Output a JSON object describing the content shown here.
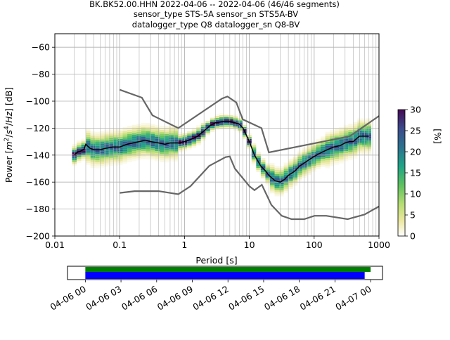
{
  "title": {
    "line1": "BK.BK52.00.HHN   2022-04-06 -- 2022-04-06  (46/46 segments)",
    "line2": "sensor_type STS-5A sensor_sn STS5A-BV",
    "line3": "datalogger_type Q8 datalogger_sn Q8-BV"
  },
  "colors": {
    "median": "#000000",
    "noise_models": "#666666",
    "grid": "#b0b0b0",
    "coverage_data": "#008000",
    "coverage_gaps": "#0000ff"
  },
  "chart_data": [
    {
      "type": "heatmap",
      "xlabel": "Period [s]",
      "ylabel": "Power [m²/s⁴/Hz] [dB]",
      "ylabel_parts": [
        "Power [",
        "m",
        "2",
        "/",
        "s",
        "4",
        "/",
        "Hz",
        "] [dB]"
      ],
      "x_scale": "log",
      "xlim": [
        0.01,
        1000
      ],
      "ylim": [
        -200,
        -50
      ],
      "grid": true,
      "x_ticks": [
        {
          "value": 0.01,
          "label": "0.01"
        },
        {
          "value": 0.1,
          "label": "0.1"
        },
        {
          "value": 1,
          "label": "1"
        },
        {
          "value": 10,
          "label": "10"
        },
        {
          "value": 100,
          "label": "100"
        },
        {
          "value": 1000,
          "label": "1000"
        }
      ],
      "y_ticks": [
        {
          "value": -60,
          "label": "−60"
        },
        {
          "value": -80,
          "label": "−80"
        },
        {
          "value": -100,
          "label": "−100"
        },
        {
          "value": -120,
          "label": "−120"
        },
        {
          "value": -140,
          "label": "−140"
        },
        {
          "value": -160,
          "label": "−160"
        },
        {
          "value": -180,
          "label": "−180"
        },
        {
          "value": -200,
          "label": "−200"
        }
      ],
      "median": {
        "x": [
          0.02,
          0.022,
          0.025,
          0.028,
          0.03,
          0.035,
          0.04,
          0.05,
          0.06,
          0.08,
          0.1,
          0.13,
          0.16,
          0.2,
          0.25,
          0.3,
          0.4,
          0.5,
          0.6,
          0.8,
          1.0,
          1.3,
          1.6,
          2.0,
          2.5,
          3.0,
          4.0,
          5.0,
          6.0,
          7.0,
          8.0,
          10,
          12,
          15,
          18,
          20,
          25,
          30,
          35,
          40,
          50,
          60,
          80,
          100,
          130,
          160,
          200,
          250,
          300,
          350,
          400,
          500,
          600,
          700
        ],
        "y": [
          -140,
          -138,
          -137,
          -136,
          -132,
          -135,
          -136,
          -136,
          -135,
          -134,
          -134,
          -132,
          -131,
          -130,
          -129,
          -130,
          -131,
          -132,
          -131,
          -131,
          -130,
          -128,
          -126,
          -122,
          -118,
          -116,
          -115,
          -115,
          -116,
          -117,
          -120,
          -130,
          -140,
          -148,
          -152,
          -155,
          -159,
          -160,
          -158,
          -155,
          -152,
          -148,
          -144,
          -141,
          -138,
          -136,
          -134,
          -133,
          -131,
          -130,
          -130,
          -126,
          -126,
          -126
        ]
      },
      "noise_model_high": {
        "x": [
          0.1,
          0.22,
          0.32,
          0.8,
          3.8,
          4.6,
          6.3,
          7.9,
          15.4,
          20,
          354.8,
          1000
        ],
        "y": [
          -91.5,
          -97.4,
          -110.5,
          -120,
          -98,
          -96.5,
          -101,
          -113.5,
          -120,
          -138,
          -126,
          -111
        ]
      },
      "noise_model_low": {
        "x": [
          0.1,
          0.17,
          0.4,
          0.8,
          1.24,
          2.4,
          4.3,
          5.0,
          6.0,
          10,
          12,
          15.6,
          21.9,
          31.6,
          45,
          70,
          101,
          154,
          328,
          600,
          1000
        ],
        "y": [
          -168,
          -166.7,
          -166.7,
          -169,
          -163,
          -148,
          -141.5,
          -141,
          -150,
          -163,
          -166,
          -162,
          -177,
          -185,
          -187.5,
          -187.5,
          -185,
          -185,
          -187.5,
          -184,
          -178
        ]
      }
    },
    {
      "type": "colorbar",
      "label": "[%]",
      "range": [
        0,
        30
      ],
      "ticks": [
        {
          "value": 0,
          "label": "0"
        },
        {
          "value": 5,
          "label": "5"
        },
        {
          "value": 10,
          "label": "10"
        },
        {
          "value": 15,
          "label": "15"
        },
        {
          "value": 20,
          "label": "20"
        },
        {
          "value": 25,
          "label": "25"
        },
        {
          "value": 30,
          "label": "30"
        }
      ]
    },
    {
      "type": "timeline",
      "xlim_hours": [
        -1.5,
        25
      ],
      "data_bar": {
        "start_hour": 0,
        "end_hour": 24
      },
      "gaps_bar": {
        "start_hour": 0,
        "end_hour": 23.5
      },
      "ticks": [
        {
          "hour": 0,
          "label": "04-06 00"
        },
        {
          "hour": 3,
          "label": "04-06 03"
        },
        {
          "hour": 6,
          "label": "04-06 06"
        },
        {
          "hour": 9,
          "label": "04-06 09"
        },
        {
          "hour": 12,
          "label": "04-06 12"
        },
        {
          "hour": 15,
          "label": "04-06 15"
        },
        {
          "hour": 18,
          "label": "04-06 18"
        },
        {
          "hour": 21,
          "label": "04-06 21"
        },
        {
          "hour": 24,
          "label": "04-07 00"
        }
      ]
    }
  ]
}
